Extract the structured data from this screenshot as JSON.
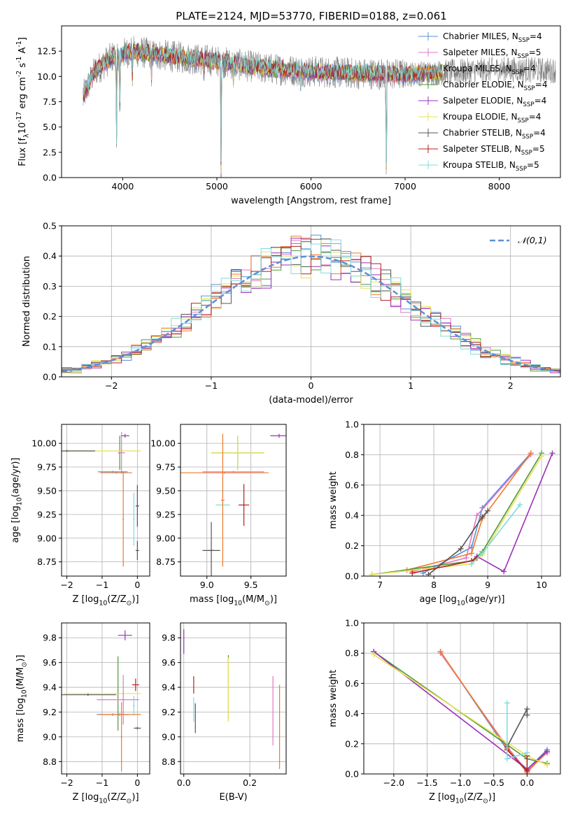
{
  "figure": {
    "title": "PLATE=2124, MJD=53770, FIBERID=0188, z=0.061"
  },
  "colors": {
    "chabrier_miles": "#5b8fd8",
    "salpeter_miles": "#e377c2",
    "kroupa_miles": "#f07a2a",
    "chabrier_elodie": "#4f9a3a",
    "salpeter_elodie": "#9b30b8",
    "kroupa_elodie": "#e8e05a",
    "chabrier_stelib": "#555555",
    "salpeter_stelib": "#b22222",
    "kroupa_stelib": "#7fdcdc",
    "gaussian": "#5b8fd8"
  },
  "legend": [
    "Chabrier MILES, N$_{SSP}$=4",
    "Salpeter MILES, N$_{SSP}$=5",
    "Kroupa MILES, N$_{SSP}$=4",
    "Chabrier ELODIE, N$_{SSP}$=4",
    "Salpeter ELODIE, N$_{SSP}$=4",
    "Kroupa ELODIE, N$_{SSP}$=4",
    "Chabrier STELIB, N$_{SSP}$=4",
    "Salpeter STELIB, N$_{SSP}$=5",
    "Kroupa STELIB, N$_{SSP}$=5"
  ],
  "chart_data": [
    {
      "id": "spectrum",
      "type": "line",
      "xlabel": "wavelength [Angstrom, rest frame]",
      "ylabel": "Flux [f$_\\lambda$10$^{-17}$ erg cm$^{-2}$ s$^{-1}$ A$^{-1}$]",
      "xlim": [
        3350,
        8650
      ],
      "ylim": [
        0,
        15
      ],
      "xticks": [
        4000,
        5000,
        6000,
        7000,
        8000
      ],
      "yticks": [
        0.0,
        2.5,
        5.0,
        7.5,
        10.0,
        12.5
      ],
      "ytick_labels": [
        "0.0",
        "2.5",
        "5.0",
        "7.5",
        "10.0",
        "12.5"
      ],
      "grid": false,
      "legend_position": "upper-right",
      "observed_range": [
        3580,
        8600
      ],
      "model_range": [
        3580,
        7400
      ],
      "continuum": [
        [
          3580,
          8.0
        ],
        [
          3700,
          10.5
        ],
        [
          3900,
          12.0
        ],
        [
          4100,
          12.5
        ],
        [
          4500,
          12.0
        ],
        [
          5000,
          11.5
        ],
        [
          5500,
          10.8
        ],
        [
          6000,
          10.5
        ],
        [
          6500,
          10.3
        ],
        [
          7000,
          10.2
        ],
        [
          7400,
          10.4
        ],
        [
          8000,
          10.7
        ],
        [
          8600,
          10.6
        ]
      ],
      "absorption_features": [
        {
          "x": 3933,
          "depth": 9.0
        },
        {
          "x": 3968,
          "depth": 6.0
        },
        {
          "x": 4102,
          "depth": 3.0
        },
        {
          "x": 4305,
          "depth": 2.5
        },
        {
          "x": 4861,
          "depth": 2.0
        },
        {
          "x": 5045,
          "depth": 11.5
        },
        {
          "x": 5175,
          "depth": 2.0
        },
        {
          "x": 5890,
          "depth": 1.5
        },
        {
          "x": 6800,
          "depth": 11.0
        }
      ]
    },
    {
      "id": "residuals",
      "type": "histogram",
      "xlabel": "(data-model)/error",
      "ylabel": "Normed distribution",
      "xlim": [
        -2.5,
        2.5
      ],
      "ylim": [
        0,
        0.5
      ],
      "xticks": [
        -2,
        -1,
        0,
        1,
        2
      ],
      "xtick_labels": [
        "−2",
        "−1",
        "0",
        "1",
        "2"
      ],
      "yticks": [
        0.0,
        0.1,
        0.2,
        0.3,
        0.4,
        0.5
      ],
      "ytick_labels": [
        "0.0",
        "0.1",
        "0.2",
        "0.3",
        "0.4",
        "0.5"
      ],
      "grid": true,
      "legend": [
        "$\\mathcal{N}(0,1)$"
      ],
      "legend_position": "upper-right",
      "bin_width": 0.1,
      "bins_from": -2.5,
      "bins_to": 2.5
    },
    {
      "id": "age_vs_Z",
      "type": "errorbar",
      "xlabel": "Z [log$_{10}$(Z/Z$_\\odot$)]",
      "ylabel": "age  [log$_{10}$($age/yr$)]",
      "xlim": [
        -2.15,
        0.35
      ],
      "ylim": [
        8.6,
        10.2
      ],
      "xticks": [
        -2,
        -1,
        0
      ],
      "xtick_labels": [
        "−2",
        "−1",
        "0"
      ],
      "yticks": [
        8.75,
        9.0,
        9.25,
        9.5,
        9.75,
        10.0
      ],
      "ytick_labels": [
        "8.75",
        "9.00",
        "9.25",
        "9.50",
        "9.75",
        "10.00"
      ],
      "grid": true,
      "points": [
        {
          "model": "chabrier_elodie",
          "x": -0.5,
          "xerr": 0.05,
          "y": 9.9,
          "yerr": 0.18
        },
        {
          "model": "kroupa_elodie",
          "x": -1.0,
          "xerr": 1.1,
          "y": 9.92,
          "yerr": 0.02
        },
        {
          "model": "chabrier_stelib",
          "x": -2.0,
          "xerr": 0.8,
          "y": 9.92,
          "yerr": 0.01
        },
        {
          "model": "salpeter_elodie",
          "x": -0.35,
          "xerr": 0.12,
          "y": 10.08,
          "yerr": 0.02
        },
        {
          "model": "salpeter_miles",
          "x": -0.45,
          "xerr": 0.1,
          "y": 9.9,
          "yerr": 0.22
        },
        {
          "model": "kroupa_miles",
          "x": -0.6,
          "xerr": 0.45,
          "y": 9.69,
          "yerr": 0.01
        },
        {
          "model": "chabrier_miles",
          "x": -0.7,
          "xerr": 0.42,
          "y": 9.7,
          "yerr": 0.01
        },
        {
          "model": "kroupa_stelib",
          "x": -0.1,
          "xerr": 0.02,
          "y": 9.2,
          "yerr": 0.28
        },
        {
          "model": "chabrier_stelib",
          "x": 0.0,
          "xerr": 0.05,
          "y": 9.34,
          "yerr": 0.22
        },
        {
          "model": "chabrier_stelib",
          "x": 0.0,
          "xerr": 0.05,
          "y": 8.87,
          "yerr": 0.1
        },
        {
          "model": "kroupa_miles",
          "x": -0.4,
          "xerr": 0.02,
          "y": 9.2,
          "yerr": 0.5
        }
      ]
    },
    {
      "id": "age_vs_mass",
      "type": "errorbar",
      "xlabel": "mass [log$_{10}$($M/M_\\odot$)]",
      "xlim": [
        8.7,
        9.9
      ],
      "ylim": [
        8.6,
        10.2
      ],
      "xticks": [
        9.0,
        9.5
      ],
      "xtick_labels": [
        "9.0",
        "9.5"
      ],
      "yticks": [
        8.75,
        9.0,
        9.25,
        9.5,
        9.75,
        10.0
      ],
      "ytick_labels": [
        "8.75",
        "9.00",
        "9.25",
        "9.50",
        "9.75",
        "10.00"
      ],
      "grid": true,
      "points": [
        {
          "model": "salpeter_elodie",
          "x": 9.82,
          "xerr": 0.1,
          "y": 10.08,
          "yerr": 0.02
        },
        {
          "model": "chabrier_elodie",
          "x": 9.35,
          "xerr": 0.3,
          "y": 9.9,
          "yerr": 0.18
        },
        {
          "model": "kroupa_elodie",
          "x": 9.35,
          "xerr": 0.3,
          "y": 9.9,
          "yerr": 0.18
        },
        {
          "model": "salpeter_miles",
          "x": 9.3,
          "xerr": 0.35,
          "y": 9.7,
          "yerr": 0.01
        },
        {
          "model": "kroupa_miles",
          "x": 9.2,
          "xerr": 0.5,
          "y": 9.69,
          "yerr": 0.01
        },
        {
          "model": "salpeter_stelib",
          "x": 9.42,
          "xerr": 0.06,
          "y": 9.35,
          "yerr": 0.22
        },
        {
          "model": "kroupa_stelib",
          "x": 9.18,
          "xerr": 0.08,
          "y": 9.35,
          "yerr": 0.22
        },
        {
          "model": "chabrier_stelib",
          "x": 9.05,
          "xerr": 0.03,
          "y": 8.87,
          "yerr": 0.3
        },
        {
          "model": "chabrier_stelib",
          "x": 9.05,
          "xerr": 0.1,
          "y": 8.87,
          "yerr": 0.01
        },
        {
          "model": "kroupa_miles",
          "x": 9.18,
          "xerr": 0.02,
          "y": 9.4,
          "yerr": 0.7
        }
      ]
    },
    {
      "id": "weight_vs_age",
      "type": "line",
      "xlabel": "age  [log$_{10}$($age/yr$)]",
      "ylabel": "mass weight",
      "xlim": [
        6.7,
        10.35
      ],
      "ylim": [
        0,
        1.0
      ],
      "xticks": [
        7,
        8,
        9,
        10
      ],
      "yticks": [
        0.0,
        0.2,
        0.4,
        0.6,
        0.8,
        1.0
      ],
      "ytick_labels": [
        "0.0",
        "0.2",
        "0.4",
        "0.6",
        "0.8",
        "1.0"
      ],
      "grid": true,
      "series": [
        {
          "model": "chabrier_miles",
          "x": [
            7.8,
            8.7,
            8.9,
            9.8
          ],
          "y": [
            0.02,
            0.19,
            0.45,
            0.81
          ]
        },
        {
          "model": "salpeter_miles",
          "x": [
            7.6,
            8.6,
            8.8,
            9.8
          ],
          "y": [
            0.03,
            0.12,
            0.4,
            0.8
          ]
        },
        {
          "model": "kroupa_miles",
          "x": [
            7.5,
            8.7,
            8.9,
            9.8
          ],
          "y": [
            0.04,
            0.15,
            0.38,
            0.81
          ]
        },
        {
          "model": "chabrier_elodie",
          "x": [
            6.85,
            8.7,
            8.9,
            10.0
          ],
          "y": [
            0.01,
            0.1,
            0.16,
            0.81
          ]
        },
        {
          "model": "salpeter_elodie",
          "x": [
            8.8,
            9.3,
            10.2
          ],
          "y": [
            0.13,
            0.03,
            0.81
          ]
        },
        {
          "model": "kroupa_elodie",
          "x": [
            6.85,
            8.7,
            8.9,
            10.0
          ],
          "y": [
            0.01,
            0.08,
            0.14,
            0.79
          ]
        },
        {
          "model": "chabrier_stelib",
          "x": [
            7.9,
            8.5,
            8.9,
            9.0
          ],
          "y": [
            0.01,
            0.18,
            0.39,
            0.43
          ]
        },
        {
          "model": "salpeter_stelib",
          "x": [
            7.6,
            8.7,
            8.8
          ],
          "y": [
            0.02,
            0.1,
            0.12
          ]
        },
        {
          "model": "kroupa_stelib",
          "x": [
            8.7,
            8.9,
            9.6
          ],
          "y": [
            0.08,
            0.15,
            0.47
          ]
        }
      ]
    },
    {
      "id": "mass_vs_Z",
      "type": "errorbar",
      "xlabel": "Z [log$_{10}$(Z/Z$_\\odot$)]",
      "ylabel": "mass [log$_{10}$($M/M_\\odot$)]",
      "xlim": [
        -2.15,
        0.35
      ],
      "ylim": [
        8.7,
        9.92
      ],
      "xticks": [
        -2,
        -1,
        0
      ],
      "xtick_labels": [
        "−2",
        "−1",
        "0"
      ],
      "yticks": [
        8.8,
        9.0,
        9.2,
        9.4,
        9.6,
        9.8
      ],
      "ytick_labels": [
        "8.8",
        "9.0",
        "9.2",
        "9.4",
        "9.6",
        "9.8"
      ],
      "grid": true,
      "points": [
        {
          "model": "salpeter_elodie",
          "x": -0.35,
          "xerr": 0.2,
          "y": 9.82,
          "yerr": 0.04
        },
        {
          "model": "chabrier_elodie",
          "x": -0.55,
          "xerr": 0.03,
          "y": 9.35,
          "yerr": 0.3
        },
        {
          "model": "kroupa_elodie",
          "x": -1.0,
          "xerr": 1.1,
          "y": 9.35,
          "yerr": 0.01
        },
        {
          "model": "chabrier_stelib",
          "x": -1.4,
          "xerr": 0.8,
          "y": 9.34,
          "yerr": 0.01
        },
        {
          "model": "salpeter_miles",
          "x": -0.55,
          "xerr": 0.6,
          "y": 9.3,
          "yerr": 0.01
        },
        {
          "model": "salpeter_miles",
          "x": -0.4,
          "xerr": 0.03,
          "y": 9.3,
          "yerr": 0.2
        },
        {
          "model": "chabrier_miles",
          "x": -0.7,
          "xerr": 0.45,
          "y": 9.18,
          "yerr": 0.01
        },
        {
          "model": "kroupa_miles",
          "x": -0.5,
          "xerr": 0.6,
          "y": 9.18,
          "yerr": 0.01
        },
        {
          "model": "kroupa_miles",
          "x": -0.45,
          "xerr": 0.02,
          "y": 9.0,
          "yerr": 0.28
        },
        {
          "model": "salpeter_stelib",
          "x": -0.05,
          "xerr": 0.1,
          "y": 9.42,
          "yerr": 0.05
        },
        {
          "model": "kroupa_stelib",
          "x": -0.1,
          "xerr": 0.03,
          "y": 9.25,
          "yerr": 0.08
        },
        {
          "model": "chabrier_stelib",
          "x": 0.0,
          "xerr": 0.1,
          "y": 9.07,
          "yerr": 0.01
        }
      ]
    },
    {
      "id": "mass_vs_ebv",
      "type": "errorbar",
      "xlabel": "E(B-V)",
      "xlim": [
        -0.01,
        0.31
      ],
      "ylim": [
        8.7,
        9.92
      ],
      "xticks": [
        0.0,
        0.2
      ],
      "xtick_labels": [
        "0.0",
        "0.2"
      ],
      "yticks": [
        8.8,
        9.0,
        9.2,
        9.4,
        9.6,
        9.8
      ],
      "ytick_labels": [
        "8.8",
        "9.0",
        "9.2",
        "9.4",
        "9.6",
        "9.8"
      ],
      "grid": true,
      "points": [
        {
          "model": "salpeter_elodie",
          "x": 0.0,
          "xerr": 0.0,
          "y": 9.77,
          "yerr": 0.1
        },
        {
          "model": "salpeter_stelib",
          "x": 0.03,
          "xerr": 0.0,
          "y": 9.42,
          "yerr": 0.07
        },
        {
          "model": "kroupa_stelib",
          "x": 0.03,
          "xerr": 0.0,
          "y": 9.22,
          "yerr": 0.1
        },
        {
          "model": "chabrier_stelib",
          "x": 0.035,
          "xerr": 0.0,
          "y": 9.15,
          "yerr": 0.12
        },
        {
          "model": "chabrier_elodie",
          "x": 0.135,
          "xerr": 0.0,
          "y": 9.4,
          "yerr": 0.26
        },
        {
          "model": "kroupa_elodie",
          "x": 0.135,
          "xerr": 0.0,
          "y": 9.38,
          "yerr": 0.26
        },
        {
          "model": "salpeter_miles",
          "x": 0.27,
          "xerr": 0.0,
          "y": 9.21,
          "yerr": 0.28
        },
        {
          "model": "kroupa_miles",
          "x": 0.29,
          "xerr": 0.0,
          "y": 9.08,
          "yerr": 0.34
        }
      ]
    },
    {
      "id": "weight_vs_Z",
      "type": "line",
      "xlabel": "Z [log$_{10}$(Z/Z$_\\odot$)]",
      "ylabel": "mass weight",
      "xlim": [
        -2.45,
        0.5
      ],
      "ylim": [
        0,
        1.0
      ],
      "xticks": [
        -2.0,
        -1.5,
        -1.0,
        -0.5,
        0.0
      ],
      "xtick_labels": [
        "−2.0",
        "−1.5",
        "−1.0",
        "−0.5",
        "0.0"
      ],
      "yticks": [
        0.0,
        0.2,
        0.4,
        0.6,
        0.8,
        1.0
      ],
      "ytick_labels": [
        "0.0",
        "0.2",
        "0.4",
        "0.6",
        "0.8",
        "1.0"
      ],
      "grid": true,
      "series": [
        {
          "model": "chabrier_miles",
          "x": [
            -1.3,
            -0.3,
            0.0,
            0.3
          ],
          "y": [
            0.81,
            0.16,
            0.03,
            0.16
          ]
        },
        {
          "model": "salpeter_miles",
          "x": [
            -1.3,
            -0.3,
            0.0,
            0.3
          ],
          "y": [
            0.8,
            0.18,
            0.02,
            0.14
          ]
        },
        {
          "model": "kroupa_miles",
          "x": [
            -1.3,
            -0.3,
            0.0,
            0.3
          ],
          "y": [
            0.81,
            0.17,
            0.01,
            0.15
          ]
        },
        {
          "model": "chabrier_elodie",
          "x": [
            -2.3,
            0.0,
            0.3
          ],
          "y": [
            0.81,
            0.1,
            0.07
          ]
        },
        {
          "model": "salpeter_elodie",
          "x": [
            -2.3,
            0.0,
            0.3
          ],
          "y": [
            0.81,
            0.03,
            0.15
          ]
        },
        {
          "model": "kroupa_elodie",
          "x": [
            -2.3,
            0.0,
            0.3
          ],
          "y": [
            0.79,
            0.12,
            0.06
          ]
        },
        {
          "model": "chabrier_stelib",
          "x": [
            -0.3,
            0.0,
            0.0
          ],
          "y": [
            0.18,
            0.43,
            0.39
          ]
        },
        {
          "model": "salpeter_stelib",
          "x": [
            -0.3,
            0.0,
            0.0
          ],
          "y": [
            0.16,
            0.02,
            0.12
          ]
        },
        {
          "model": "kroupa_stelib",
          "x": [
            -0.3,
            -0.3,
            0.0
          ],
          "y": [
            0.47,
            0.1,
            0.14
          ]
        }
      ]
    }
  ]
}
